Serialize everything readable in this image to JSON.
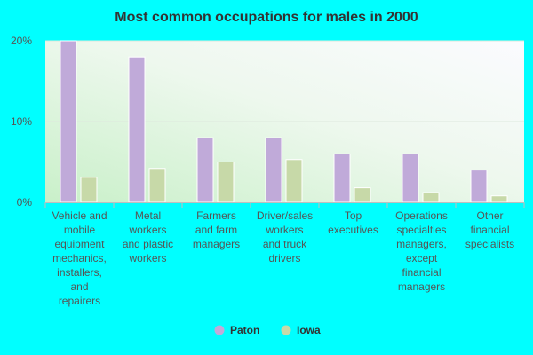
{
  "chart_data": {
    "type": "bar",
    "title": "Most common occupations for males in 2000",
    "xlabel": "",
    "ylabel": "",
    "ylim": [
      0,
      20
    ],
    "yticks": [
      {
        "value": 0,
        "label": "0%"
      },
      {
        "value": 10,
        "label": "10%"
      },
      {
        "value": 20,
        "label": "20%"
      }
    ],
    "categories": [
      [
        "Vehicle and",
        "mobile",
        "equipment",
        "mechanics,",
        "installers,",
        "and",
        "repairers"
      ],
      [
        "Metal",
        "workers",
        "and plastic",
        "workers"
      ],
      [
        "Farmers",
        "and farm",
        "managers"
      ],
      [
        "Driver/sales",
        "workers",
        "and truck",
        "drivers"
      ],
      [
        "Top",
        "executives"
      ],
      [
        "Operations",
        "specialties",
        "managers,",
        "except",
        "financial",
        "managers"
      ],
      [
        "Other",
        "financial",
        "specialists"
      ]
    ],
    "series": [
      {
        "name": "Paton",
        "color": "#c0aad9",
        "values": [
          20,
          18,
          8,
          8,
          6,
          6,
          4
        ]
      },
      {
        "name": "Iowa",
        "color": "#c7d9a8",
        "values": [
          3.1,
          4.2,
          5.0,
          5.3,
          1.8,
          1.2,
          0.8
        ]
      }
    ],
    "grid": true,
    "legend": "bottom-center"
  }
}
